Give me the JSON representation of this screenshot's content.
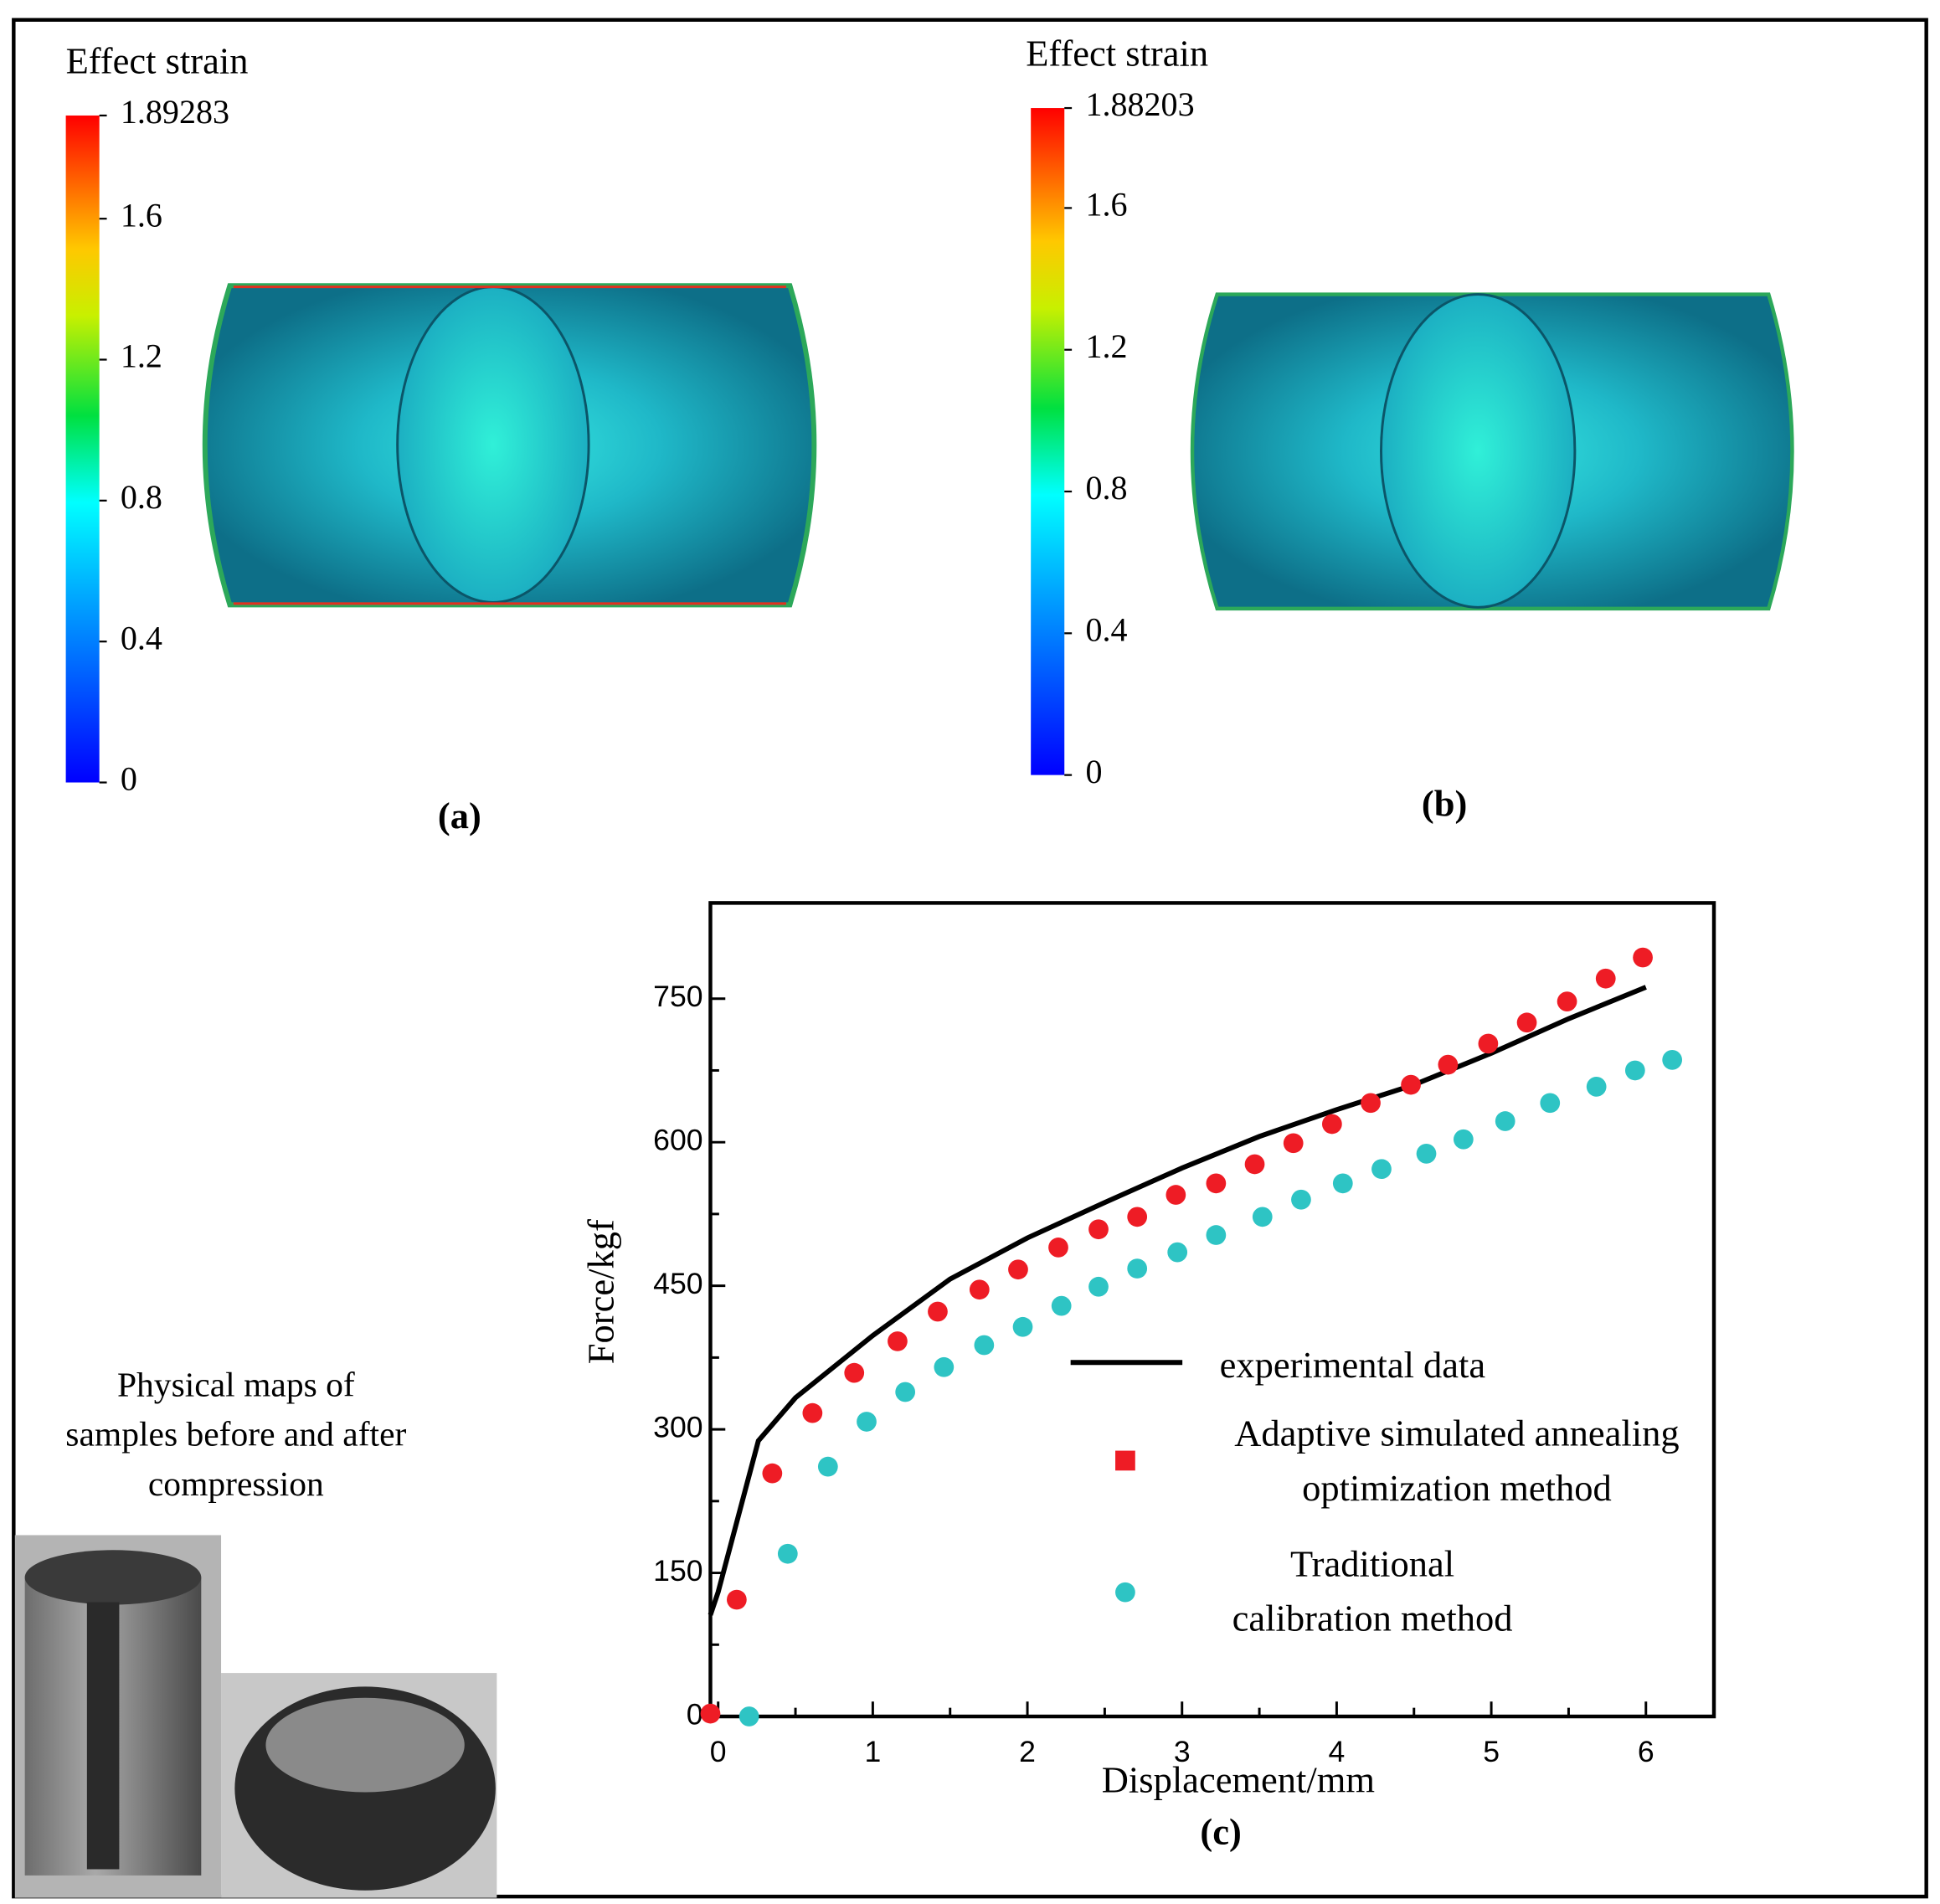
{
  "panels": [
    {
      "label": "(a)",
      "colorbar": {
        "title": "Effect strain",
        "lim": [
          0,
          1.89283
        ],
        "ticks": [
          0,
          0.4,
          0.8,
          1.2,
          1.6,
          1.89283
        ]
      }
    },
    {
      "label": "(b)",
      "colorbar": {
        "title": "Effect strain",
        "lim": [
          0,
          1.88203
        ],
        "ticks": [
          0,
          0.4,
          0.8,
          1.2,
          1.6,
          1.88203
        ]
      }
    }
  ],
  "photo_caption": "Physical maps of\nsamples before and after\ncompression",
  "chart_data": {
    "type": "line",
    "label": "(c)",
    "xlabel": "Displacement/mm",
    "ylabel": "Force/kgf",
    "xlim": [
      -0.05,
      6.44
    ],
    "ylim": [
      0,
      850
    ],
    "xticks": [
      0,
      1,
      2,
      3,
      4,
      5,
      6
    ],
    "yticks": [
      0,
      150,
      300,
      450,
      600,
      750
    ],
    "xminorticks": [
      0.5,
      1.5,
      2.5,
      3.5,
      4.5,
      5.5
    ],
    "yminorticks": [
      75,
      225,
      375,
      525,
      675
    ],
    "series": [
      {
        "name": "experimental data",
        "color": "#000000",
        "style": "line",
        "x": [
          -0.05,
          0,
          0.26,
          0.5,
          1,
          1.5,
          2,
          2.5,
          3,
          3.5,
          4,
          4.5,
          5,
          5.5,
          6
        ],
        "values": [
          106,
          130,
          288,
          333,
          398,
          457,
          500,
          537,
          573,
          606,
          634,
          660,
          693,
          729,
          762
        ]
      },
      {
        "name": "Adaptive simulated annealing\noptimization method",
        "color": "#ee1c25",
        "style": "markers",
        "legend_marker": "square",
        "x": [
          -0.05,
          0.12,
          0.35,
          0.61,
          0.88,
          1.16,
          1.42,
          1.69,
          1.94,
          2.2,
          2.46,
          2.71,
          2.96,
          3.22,
          3.47,
          3.72,
          3.97,
          4.22,
          4.48,
          4.72,
          4.98,
          5.23,
          5.49,
          5.74,
          5.98
        ],
        "values": [
          3,
          122,
          254,
          317,
          359,
          392,
          423,
          446,
          467,
          490,
          509,
          522,
          545,
          557,
          577,
          599,
          619,
          641,
          660,
          681,
          703,
          725,
          747,
          771,
          793
        ]
      },
      {
        "name": "Traditional\ncalibration method",
        "color": "#2ec4c4",
        "style": "markers",
        "legend_marker": "circle",
        "x": [
          0.2,
          0.45,
          0.71,
          0.96,
          1.21,
          1.46,
          1.72,
          1.97,
          2.22,
          2.46,
          2.71,
          2.97,
          3.22,
          3.52,
          3.77,
          4.04,
          4.29,
          4.58,
          4.82,
          5.09,
          5.38,
          5.68,
          5.93,
          6.17
        ],
        "values": [
          0,
          170,
          261,
          308,
          339,
          365,
          388,
          407,
          429,
          449,
          468,
          485,
          503,
          522,
          540,
          557,
          572,
          588,
          603,
          622,
          641,
          658,
          675,
          686
        ]
      }
    ]
  }
}
